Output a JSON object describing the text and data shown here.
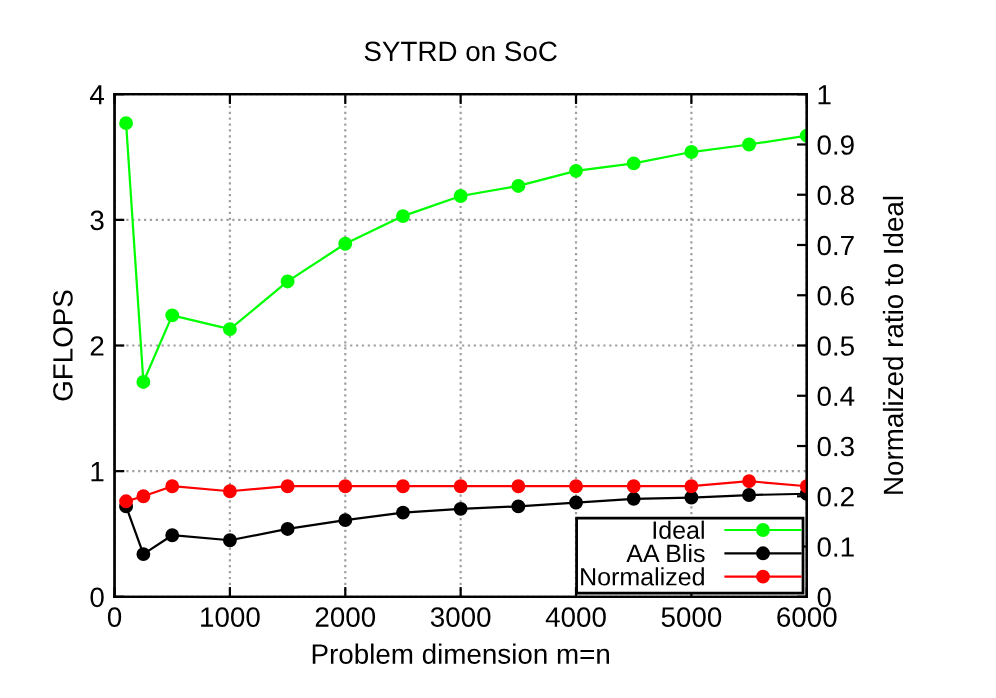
{
  "chart_data": {
    "type": "line",
    "title": "SYTRD on SoC",
    "xlabel": "Problem dimension m=n",
    "ylabel": "GFLOPS",
    "y2label": "Normalized ratio to Ideal",
    "x": [
      100,
      250,
      500,
      1000,
      1500,
      2000,
      2500,
      3000,
      3500,
      4000,
      4500,
      5000,
      5500,
      6000
    ],
    "series": [
      {
        "name": "Ideal",
        "color": "#00ff00",
        "values": [
          3.77,
          1.71,
          2.24,
          2.13,
          2.51,
          2.81,
          3.03,
          3.19,
          3.27,
          3.39,
          3.45,
          3.54,
          3.6,
          3.67
        ]
      },
      {
        "name": "AA Blis",
        "color": "#000000",
        "values": [
          0.72,
          0.34,
          0.49,
          0.45,
          0.54,
          0.61,
          0.67,
          0.7,
          0.72,
          0.75,
          0.78,
          0.79,
          0.81,
          0.82
        ]
      },
      {
        "name": "Normalized",
        "color": "#ff0000",
        "axis": "y2",
        "values": [
          0.19,
          0.2,
          0.22,
          0.21,
          0.22,
          0.22,
          0.22,
          0.22,
          0.22,
          0.22,
          0.22,
          0.22,
          0.23,
          0.22
        ]
      }
    ],
    "xlim": [
      0,
      6000
    ],
    "xticks": [
      0,
      1000,
      2000,
      3000,
      4000,
      5000,
      6000
    ],
    "ylim": [
      0,
      4
    ],
    "yticks": [
      0,
      1,
      2,
      3,
      4
    ],
    "y2lim": [
      0,
      1
    ],
    "y2ticks": [
      0,
      0.1,
      0.2,
      0.3,
      0.4,
      0.5,
      0.6,
      0.7,
      0.8,
      0.9,
      1
    ],
    "grid": true,
    "legend": "bottom right",
    "marker": "circle",
    "line_style": "solid"
  }
}
